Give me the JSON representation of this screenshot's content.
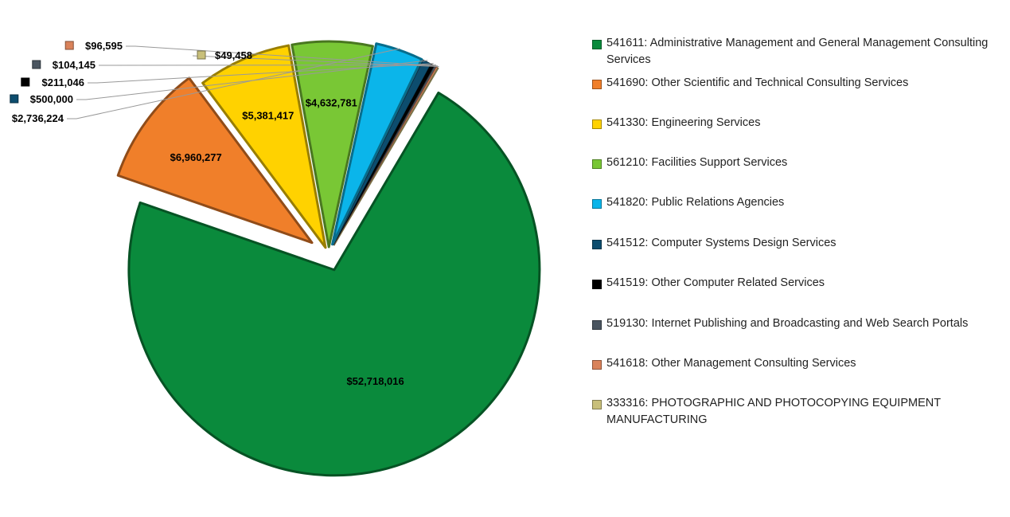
{
  "chart_data": {
    "type": "pie",
    "title": "",
    "legend_position": "right",
    "slices": [
      {
        "name": "541611:  Administrative Management and General Management Consulting Services",
        "value": 52718016,
        "label": "$52,718,016",
        "color": "#0a8a3c"
      },
      {
        "name": "541690:  Other Scientific and Technical Consulting Services",
        "value": 6960277,
        "label": "$6,960,277",
        "color": "#f07f2a"
      },
      {
        "name": "541330:  Engineering Services",
        "value": 5381417,
        "label": "$5,381,417",
        "color": "#ffd200"
      },
      {
        "name": "561210:  Facilities Support Services",
        "value": 4632781,
        "label": "$4,632,781",
        "color": "#79c735"
      },
      {
        "name": "541820:  Public Relations Agencies",
        "value": 2736224,
        "label": "$2,736,224",
        "color": "#0bb5ea"
      },
      {
        "name": "541512:  Computer Systems Design Services",
        "value": 500000,
        "label": "$500,000",
        "color": "#0d4d6e"
      },
      {
        "name": "541519:  Other Computer Related Services",
        "value": 211046,
        "label": "$211,046",
        "color": "#000000"
      },
      {
        "name": "519130:  Internet Publishing and Broadcasting and Web Search Portals",
        "value": 104145,
        "label": "$104,145",
        "color": "#4a5560"
      },
      {
        "name": "541618:  Other Management Consulting Services",
        "value": 96595,
        "label": "$96,595",
        "color": "#d9825a"
      },
      {
        "name": "333316:  PHOTOGRAPHIC AND PHOTOCOPYING EQUIPMENT MANUFACTURING",
        "value": 49458,
        "label": "$49,458",
        "color": "#c8bf7a"
      }
    ]
  }
}
